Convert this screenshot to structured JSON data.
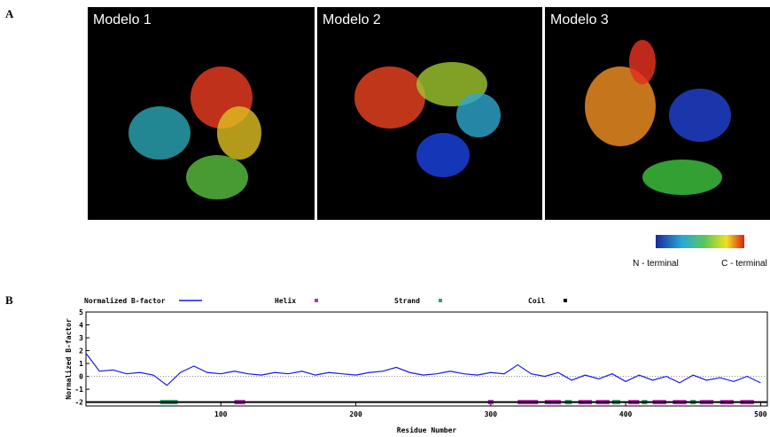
{
  "figure": {
    "panel_a": {
      "label": "A",
      "models": [
        "Modelo 1",
        "Modelo 2",
        "Modelo 3"
      ],
      "colorbar": {
        "start": "N - terminal",
        "end": "C - terminal"
      }
    },
    "panel_b": {
      "label": "B"
    }
  },
  "chart_data": {
    "type": "line",
    "x_label": "Residue Number",
    "y_label": "Normalized B-factor",
    "xlim": [
      0,
      505
    ],
    "ylim": [
      -2.3,
      5
    ],
    "xticks": [
      100,
      200,
      300,
      400,
      500
    ],
    "yticks": [
      -2,
      -1,
      0,
      1,
      2,
      3,
      4,
      5
    ],
    "reference_line": 0,
    "series": [
      {
        "name": "Normalized B-factor",
        "color": "#1a1ae6",
        "x": [
          0,
          10,
          20,
          30,
          40,
          50,
          60,
          70,
          80,
          90,
          100,
          110,
          120,
          130,
          140,
          150,
          160,
          170,
          180,
          190,
          200,
          210,
          220,
          230,
          240,
          250,
          260,
          270,
          280,
          290,
          300,
          310,
          320,
          330,
          340,
          350,
          360,
          370,
          380,
          390,
          400,
          410,
          420,
          430,
          440,
          450,
          460,
          470,
          480,
          490,
          500
        ],
        "values": [
          1.8,
          0.4,
          0.5,
          0.2,
          0.3,
          0.1,
          -0.7,
          0.3,
          0.8,
          0.3,
          0.2,
          0.4,
          0.2,
          0.1,
          0.3,
          0.2,
          0.4,
          0.1,
          0.3,
          0.2,
          0.1,
          0.3,
          0.4,
          0.7,
          0.3,
          0.1,
          0.2,
          0.4,
          0.2,
          0.1,
          0.3,
          0.2,
          0.9,
          0.2,
          0.0,
          0.3,
          -0.3,
          0.1,
          -0.2,
          0.2,
          -0.4,
          0.1,
          -0.3,
          0.0,
          -0.5,
          0.1,
          -0.3,
          -0.1,
          -0.4,
          0.0,
          -0.5
        ]
      },
      {
        "name": "Helix",
        "color": "#cc22cc",
        "segments": [
          [
            110,
            118
          ],
          [
            298,
            302
          ],
          [
            320,
            335
          ],
          [
            340,
            352
          ],
          [
            365,
            375
          ],
          [
            378,
            388
          ],
          [
            402,
            410
          ],
          [
            420,
            430
          ],
          [
            435,
            445
          ],
          [
            455,
            465
          ],
          [
            470,
            480
          ],
          [
            485,
            495
          ]
        ]
      },
      {
        "name": "Strand",
        "color": "#22aa77",
        "segments": [
          [
            55,
            68
          ],
          [
            355,
            360
          ],
          [
            390,
            396
          ],
          [
            412,
            416
          ],
          [
            448,
            452
          ]
        ]
      },
      {
        "name": "Coil",
        "color": "#000000",
        "segments": [
          [
            0,
            505
          ]
        ]
      }
    ]
  }
}
